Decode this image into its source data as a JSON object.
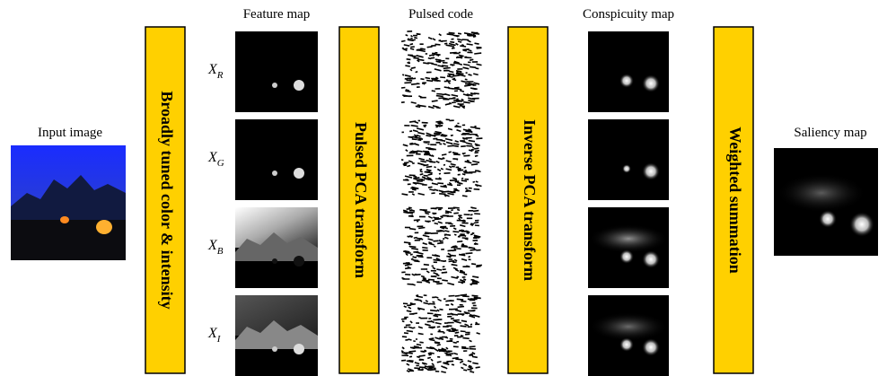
{
  "input": {
    "label": "Input image"
  },
  "stages": [
    {
      "label": "Broadly tuned color & intensity"
    },
    {
      "label": "Pulsed PCA transform"
    },
    {
      "label": "Inverse PCA transform"
    },
    {
      "label": "Weighted summation"
    }
  ],
  "columns": {
    "feature_map": "Feature map",
    "pulsed_code": "Pulsed code",
    "conspicuity_map": "Conspicuity map"
  },
  "features": [
    {
      "symbol": "X",
      "subscript": "R"
    },
    {
      "symbol": "X",
      "subscript": "G"
    },
    {
      "symbol": "X",
      "subscript": "B"
    },
    {
      "symbol": "X",
      "subscript": "I"
    }
  ],
  "output": {
    "label": "Saliency map"
  }
}
